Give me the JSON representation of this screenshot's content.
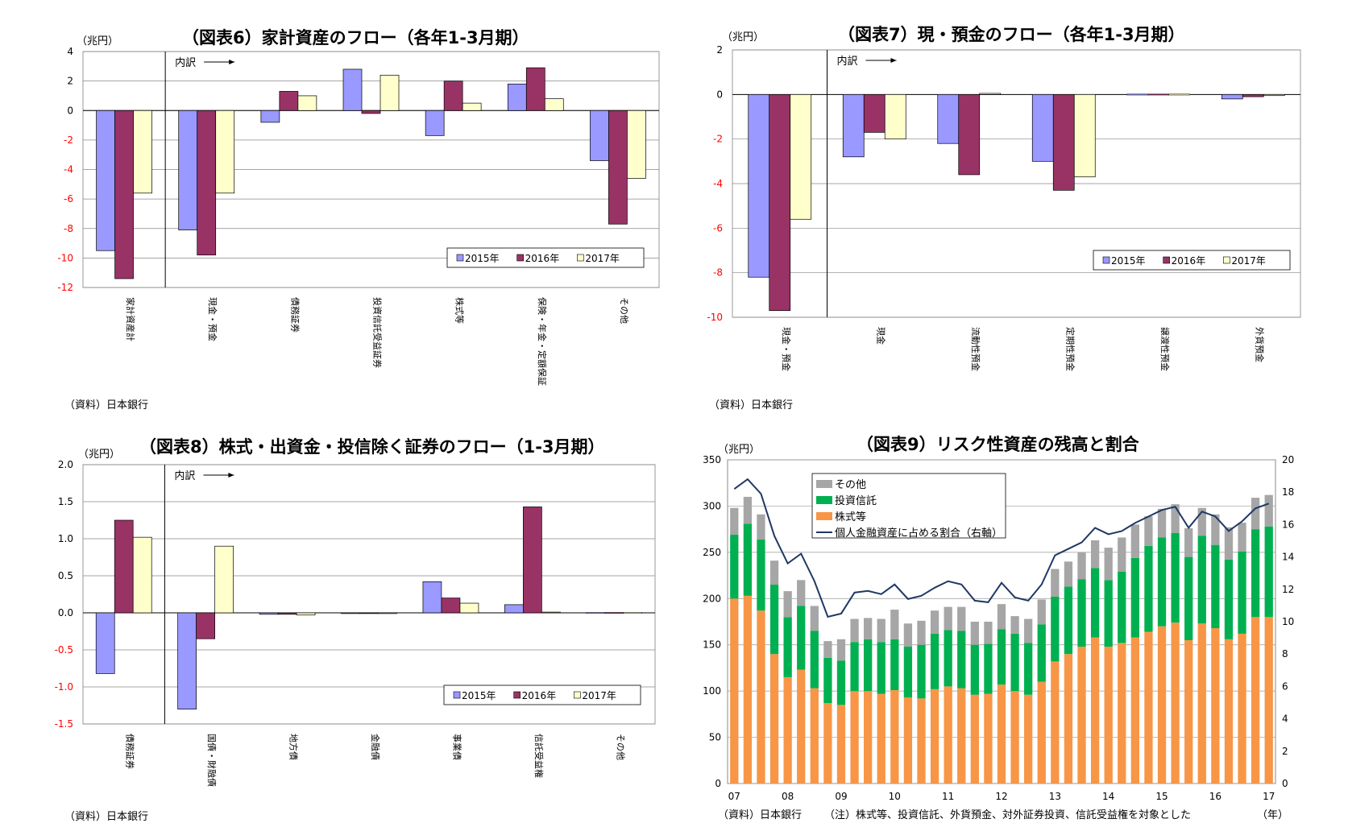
{
  "colors": {
    "s2015": "#9999ff",
    "s2016": "#993366",
    "s2017": "#ffffcc",
    "stocks": "#f79646",
    "trusts": "#00b050",
    "others": "#a6a6a6",
    "ratio": "#1f3864",
    "negative_tick": "#ff0000"
  },
  "fig6": {
    "title": "（図表6）家計資産のフロー（各年1-3月期）",
    "unit": "（兆円）",
    "source": "（資料）日本銀行",
    "breakdown_label": "内訳",
    "legend": [
      "2015年",
      "2016年",
      "2017年"
    ],
    "chart_data": {
      "type": "bar",
      "categories": [
        "家計資産計",
        "現金・預金",
        "債務証券",
        "投資信託受益証券",
        "株式等",
        "保険・年金・定額保証",
        "その他"
      ],
      "series": [
        {
          "name": "2015年",
          "values": [
            -9.5,
            -8.1,
            -0.8,
            2.8,
            -1.7,
            1.8,
            -3.4
          ]
        },
        {
          "name": "2016年",
          "values": [
            -11.4,
            -9.8,
            1.3,
            -0.2,
            2.0,
            2.9,
            -7.7
          ]
        },
        {
          "name": "2017年",
          "values": [
            -5.6,
            -5.6,
            1.0,
            2.4,
            0.5,
            0.8,
            -4.6
          ]
        }
      ],
      "ylim": [
        -12,
        4
      ],
      "yticks": [
        "4",
        "2",
        "0",
        "-2",
        "-4",
        "-6",
        "-8",
        "-10",
        "-12"
      ]
    }
  },
  "fig7": {
    "title": "（図表7）現・預金のフロー（各年1-3月期）",
    "unit": "（兆円）",
    "source": "（資料）日本銀行",
    "breakdown_label": "内訳",
    "legend": [
      "2015年",
      "2016年",
      "2017年"
    ],
    "chart_data": {
      "type": "bar",
      "categories": [
        "現金・預金",
        "現金",
        "流動性預金",
        "定期性預金",
        "譲渡性預金",
        "外貨預金"
      ],
      "series": [
        {
          "name": "2015年",
          "values": [
            -8.2,
            -2.8,
            -2.2,
            -3.0,
            0.0,
            -0.2
          ]
        },
        {
          "name": "2016年",
          "values": [
            -9.7,
            -1.7,
            -3.6,
            -4.3,
            0.0,
            -0.1
          ]
        },
        {
          "name": "2017年",
          "values": [
            -5.6,
            -2.0,
            0.05,
            -3.7,
            0.0,
            -0.05
          ]
        }
      ],
      "ylim": [
        -10,
        2
      ],
      "yticks": [
        "2",
        "0",
        "-2",
        "-4",
        "-6",
        "-8",
        "-10"
      ]
    }
  },
  "fig8": {
    "title": "（図表8）株式・出資金・投信除く証券のフロー（1-3月期）",
    "unit": "（兆円）",
    "source": "（資料）日本銀行",
    "breakdown_label": "内訳",
    "legend": [
      "2015年",
      "2016年",
      "2017年"
    ],
    "chart_data": {
      "type": "bar",
      "categories": [
        "債務証券",
        "国債・財融債",
        "地方債",
        "金融債",
        "事業債",
        "信託受益権",
        "その他"
      ],
      "series": [
        {
          "name": "2015年",
          "values": [
            -0.82,
            -1.3,
            -0.02,
            -0.01,
            0.42,
            0.11,
            0.0
          ]
        },
        {
          "name": "2016年",
          "values": [
            1.25,
            -0.35,
            -0.02,
            -0.01,
            0.2,
            1.43,
            0.0
          ]
        },
        {
          "name": "2017年",
          "values": [
            1.02,
            0.9,
            -0.03,
            -0.01,
            0.13,
            0.01,
            0.0
          ]
        }
      ],
      "ylim": [
        -1.5,
        2.0
      ],
      "yticks": [
        "2.0",
        "1.5",
        "1.0",
        "0.5",
        "0.0",
        "-0.5",
        "-1.0",
        "-1.5"
      ]
    }
  },
  "fig9": {
    "title": "（図表9）リスク性資産の残高と割合",
    "unit": "（兆円）",
    "source": "（資料）日本銀行",
    "note": "（注）株式等、投資信託、外貨預金、対外証券投資、信託受益権を対象とした",
    "xunit": "（年）",
    "legend": [
      "その他",
      "投資信託",
      "株式等",
      "個人金融資産に占める割合（右軸）"
    ],
    "chart_data": {
      "type": "bar",
      "stacked": true,
      "x_tick_labels": [
        "07",
        "08",
        "09",
        "10",
        "11",
        "12",
        "13",
        "14",
        "15",
        "16",
        "17"
      ],
      "ylim": [
        0,
        350
      ],
      "y2lim": [
        0,
        20
      ],
      "yticks": [
        "0",
        "50",
        "100",
        "150",
        "200",
        "250",
        "300",
        "350"
      ],
      "y2ticks": [
        "0",
        "2",
        "4",
        "6",
        "8",
        "10",
        "12",
        "14",
        "16",
        "18",
        "20"
      ],
      "series": [
        {
          "name": "株式等",
          "values": [
            200,
            203,
            187,
            140,
            115,
            123,
            103,
            87,
            85,
            100,
            100,
            97,
            101,
            93,
            92,
            102,
            105,
            103,
            96,
            97,
            107,
            100,
            96,
            110,
            132,
            140,
            148,
            158,
            148,
            152,
            158,
            164,
            170,
            174,
            155,
            173,
            168,
            156,
            162,
            180,
            180
          ]
        },
        {
          "name": "投資信託",
          "values": [
            69,
            78,
            77,
            75,
            65,
            69,
            62,
            49,
            48,
            53,
            56,
            56,
            55,
            55,
            58,
            60,
            61,
            62,
            54,
            54,
            60,
            62,
            56,
            62,
            70,
            73,
            73,
            75,
            72,
            77,
            86,
            93,
            96,
            97,
            90,
            95,
            90,
            86,
            89,
            95,
            98
          ]
        },
        {
          "name": "その他",
          "values": [
            29,
            29,
            27,
            26,
            28,
            28,
            27,
            18,
            23,
            25,
            23,
            25,
            32,
            25,
            26,
            25,
            25,
            26,
            25,
            24,
            27,
            19,
            26,
            27,
            30,
            27,
            29,
            30,
            35,
            37,
            36,
            32,
            31,
            31,
            31,
            30,
            33,
            35,
            31,
            34,
            34
          ]
        },
        {
          "name": "個人金融資産に占める割合（右軸）",
          "axis": "right",
          "values": [
            18.2,
            18.8,
            17.9,
            15.3,
            13.6,
            14.2,
            12.5,
            10.3,
            10.5,
            11.8,
            11.9,
            11.7,
            12.3,
            11.4,
            11.6,
            12.1,
            12.5,
            12.3,
            11.3,
            11.2,
            12.4,
            11.5,
            11.3,
            12.3,
            14.1,
            14.5,
            14.9,
            15.8,
            15.4,
            15.6,
            16.1,
            16.5,
            16.9,
            17.1,
            15.8,
            16.8,
            16.5,
            15.6,
            16.2,
            17.0,
            17.3
          ]
        }
      ]
    }
  }
}
